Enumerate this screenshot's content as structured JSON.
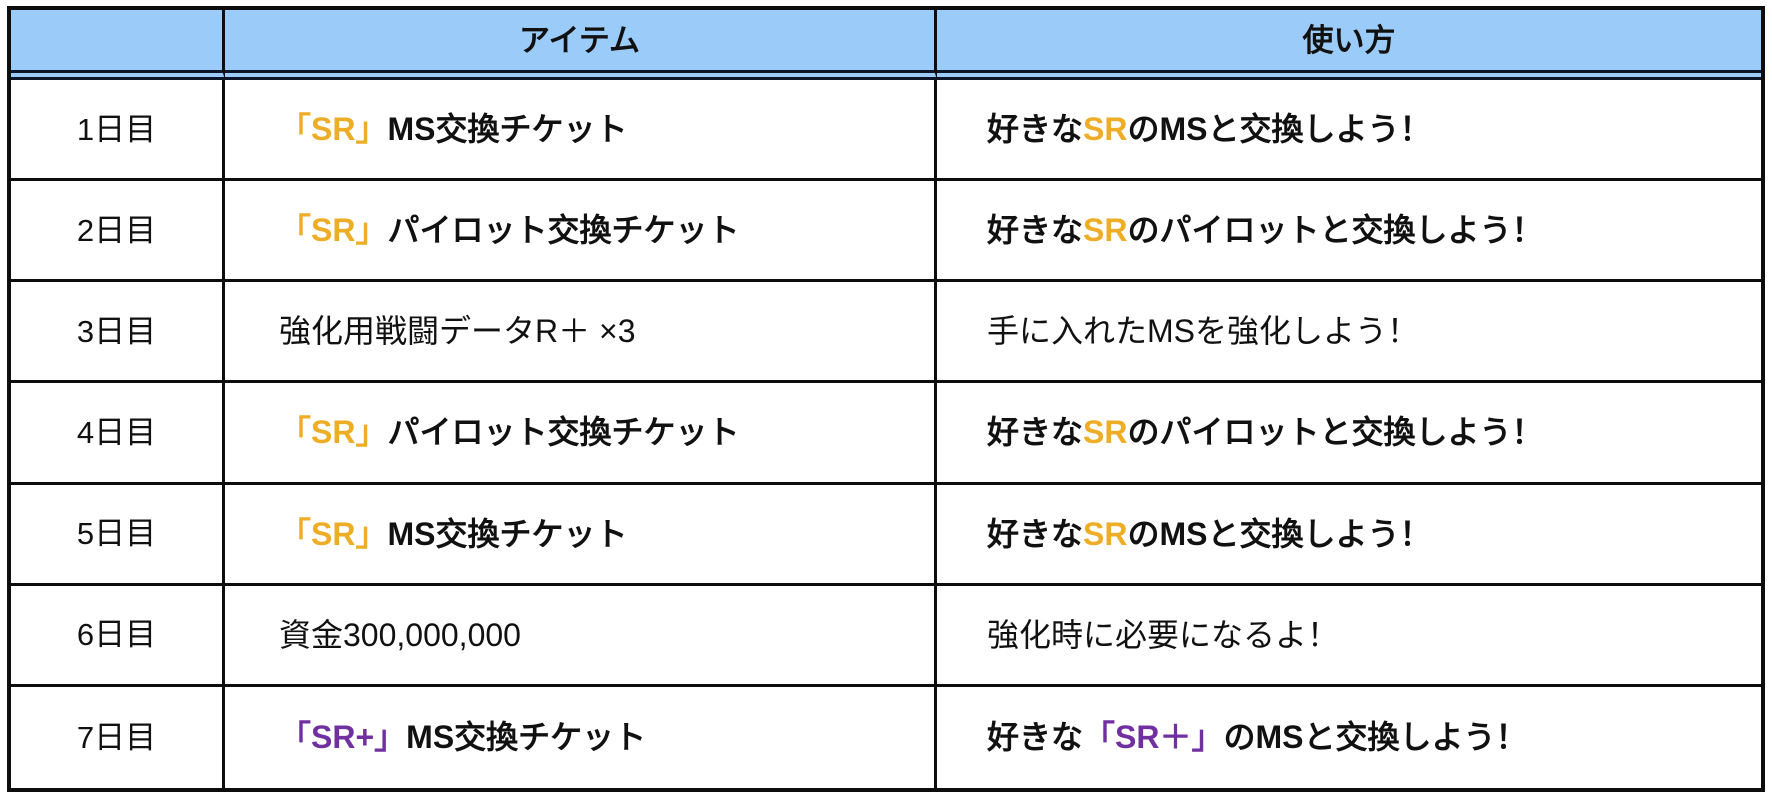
{
  "colors": {
    "gold": "#EDAD26",
    "purple": "#7030A0",
    "header_bg": "#9BCBF8",
    "border": "#0d0d0d"
  },
  "header": {
    "day": "",
    "item": "アイテム",
    "usage": "使い方"
  },
  "rows": [
    {
      "day": "1日目",
      "item": {
        "accent": "「SR」",
        "rest": " MS交換チケット",
        "tone": "gold",
        "weight": "bold"
      },
      "usage": {
        "pre": "好きな",
        "accent": "SR",
        "post": "のMSと交換しよう！",
        "tone": "gold",
        "weight": "bold"
      }
    },
    {
      "day": "2日目",
      "item": {
        "accent": "「SR」",
        "rest": " パイロット交換チケット",
        "tone": "gold",
        "weight": "bold"
      },
      "usage": {
        "pre": "好きな",
        "accent": "SR",
        "post": "のパイロットと交換しよう！",
        "tone": "gold",
        "weight": "bold"
      }
    },
    {
      "day": "3日目",
      "item": {
        "accent": "",
        "rest": "強化用戦闘データR＋ ×3",
        "tone": "none",
        "weight": "normal"
      },
      "usage": {
        "pre": "手に入れたMSを強化しよう！",
        "accent": "",
        "post": "",
        "tone": "none",
        "weight": "normal"
      }
    },
    {
      "day": "4日目",
      "item": {
        "accent": "「SR」",
        "rest": " パイロット交換チケット",
        "tone": "gold",
        "weight": "bold"
      },
      "usage": {
        "pre": "好きな",
        "accent": "SR",
        "post": "のパイロットと交換しよう！",
        "tone": "gold",
        "weight": "bold"
      }
    },
    {
      "day": "5日目",
      "item": {
        "accent": "「SR」",
        "rest": " MS交換チケット",
        "tone": "gold",
        "weight": "bold"
      },
      "usage": {
        "pre": "好きな",
        "accent": "SR",
        "post": "のMSと交換しよう！",
        "tone": "gold",
        "weight": "bold"
      }
    },
    {
      "day": "6日目",
      "item": {
        "accent": "",
        "rest": "資金300,000,000",
        "tone": "none",
        "weight": "normal"
      },
      "usage": {
        "pre": "強化時に必要になるよ！",
        "accent": "",
        "post": "",
        "tone": "none",
        "weight": "normal"
      }
    },
    {
      "day": "7日目",
      "item": {
        "accent": "「SR+」",
        "rest": " MS交換チケット",
        "tone": "purple",
        "weight": "bold"
      },
      "usage": {
        "pre": "好きな",
        "accent": "「SR＋」",
        "post": "のMSと交換しよう！",
        "tone": "purple",
        "weight": "bold"
      }
    }
  ]
}
